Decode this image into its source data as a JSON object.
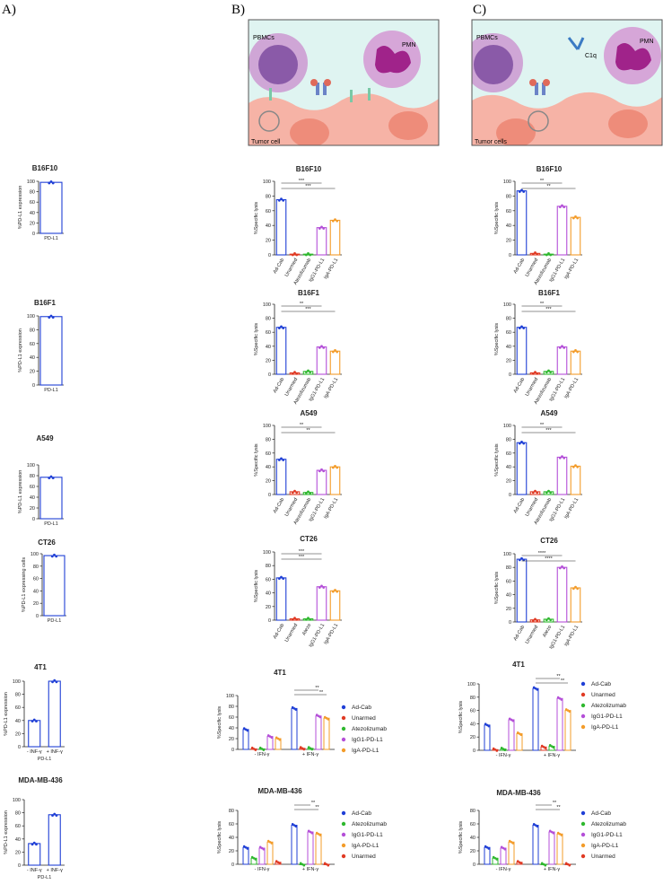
{
  "panels": {
    "a": "A)",
    "b": "B)",
    "c": "C)"
  },
  "illustrations": {
    "b": {
      "pbmc": "PBMCs",
      "pmn": "PMN",
      "tumor": "Tumor cell"
    },
    "c": {
      "pbmc": "PBMCs",
      "pmn": "PMN",
      "c1q": "C1q",
      "tumor": "Tumor cells"
    }
  },
  "colors": {
    "adcab": "#1f3fd6",
    "unarmed": "#e03a24",
    "atezo": "#2fb82f",
    "igg1": "#b44fd8",
    "iga": "#f39c2a",
    "axis": "#222222"
  },
  "chart_data": [
    {
      "id": "A1",
      "type": "bar",
      "title": "B16F10",
      "ylabel": "%PD-L1 expression",
      "ylim": [
        0,
        100
      ],
      "yticks": [
        0,
        20,
        40,
        60,
        80,
        100
      ],
      "categories": [
        "PD-L1"
      ],
      "values": [
        98
      ]
    },
    {
      "id": "A2",
      "type": "bar",
      "title": "B16F1",
      "ylabel": "%PD-L1 expression",
      "ylim": [
        0,
        100
      ],
      "yticks": [
        0,
        20,
        40,
        60,
        80,
        100
      ],
      "categories": [
        "PD-L1"
      ],
      "values": [
        99
      ]
    },
    {
      "id": "A3",
      "type": "bar",
      "title": "A549",
      "ylabel": "%PD-L1 expression",
      "ylim": [
        0,
        100
      ],
      "yticks": [
        0,
        20,
        40,
        60,
        80,
        100
      ],
      "categories": [
        "PD-L1"
      ],
      "values": [
        77
      ]
    },
    {
      "id": "A4",
      "type": "bar",
      "title": "CT26",
      "ylabel": "%PD-L1 expressing cells",
      "ylim": [
        0,
        100
      ],
      "yticks": [
        0,
        20,
        40,
        60,
        80,
        100
      ],
      "categories": [
        "PD-L1"
      ],
      "values": [
        97
      ]
    },
    {
      "id": "A5",
      "type": "bar",
      "title": "4T1",
      "ylabel": "%PD-L1 expression",
      "ylim": [
        0,
        100
      ],
      "yticks": [
        0,
        20,
        40,
        60,
        80,
        100
      ],
      "categories": [
        "- INF-γ",
        "+ INF-γ"
      ],
      "values": [
        40,
        100
      ],
      "xlabel": "PD-L1"
    },
    {
      "id": "A6",
      "type": "bar",
      "title": "MDA-MB-436",
      "ylabel": "%PD-L1 expression",
      "ylim": [
        0,
        100
      ],
      "yticks": [
        0,
        20,
        40,
        60,
        80,
        100
      ],
      "categories": [
        "- INF-γ",
        "+ INF-γ"
      ],
      "values": [
        33,
        77
      ],
      "xlabel": "PD-L1"
    },
    {
      "id": "B1",
      "type": "bar",
      "title": "B16F10",
      "ylabel": "%Specific lysis",
      "ylim": [
        0,
        100
      ],
      "yticks": [
        0,
        20,
        40,
        60,
        80,
        100
      ],
      "categories": [
        "Ad-Cab",
        "Unarmed",
        "Atezolizumab",
        "IgG1-PD-L1",
        "IgA-PD-L1"
      ],
      "values": [
        75,
        1,
        1,
        37,
        47
      ],
      "sig": [
        {
          "from": 0,
          "to": 3,
          "label": "***"
        },
        {
          "from": 0,
          "to": 4,
          "label": "***"
        }
      ]
    },
    {
      "id": "B2",
      "type": "bar",
      "title": "B16F1",
      "ylabel": "%Specific lysis",
      "ylim": [
        0,
        100
      ],
      "yticks": [
        0,
        20,
        40,
        60,
        80,
        100
      ],
      "categories": [
        "Ad-Cab",
        "Unarmed",
        "Atezolizumab",
        "IgG1-PD-L1",
        "IgA-PD-L1"
      ],
      "values": [
        67,
        2,
        4,
        39,
        33
      ],
      "sig": [
        {
          "from": 0,
          "to": 3,
          "label": "**"
        },
        {
          "from": 0,
          "to": 4,
          "label": "***"
        }
      ]
    },
    {
      "id": "B3",
      "type": "bar",
      "title": "A549",
      "ylabel": "%Specific lysis",
      "ylim": [
        0,
        100
      ],
      "yticks": [
        0,
        20,
        40,
        60,
        80,
        100
      ],
      "categories": [
        "Ad-Cab",
        "Unarmed",
        "Atezolizumab",
        "IgG1-PD-L1",
        "IgA-PD-L1"
      ],
      "values": [
        51,
        4,
        3,
        35,
        40
      ],
      "sig": [
        {
          "from": 0,
          "to": 3,
          "label": "**"
        },
        {
          "from": 0,
          "to": 4,
          "label": "**"
        }
      ]
    },
    {
      "id": "B4",
      "type": "bar",
      "title": "CT26",
      "ylabel": "%Specific lysis",
      "ylim": [
        0,
        100
      ],
      "yticks": [
        0,
        20,
        40,
        60,
        80,
        100
      ],
      "categories": [
        "Ad-Cab",
        "Unarmed",
        "Atezo",
        "IgG1-PD-L1",
        "IgA-PD-L1"
      ],
      "values": [
        62,
        2,
        2,
        49,
        43
      ],
      "sig": [
        {
          "from": 0,
          "to": 3,
          "label": "***"
        },
        {
          "from": 0,
          "to": 3,
          "label": "***"
        }
      ]
    },
    {
      "id": "C1",
      "type": "bar",
      "title": "B16F10",
      "ylabel": "%Specific lysis",
      "ylim": [
        0,
        100
      ],
      "yticks": [
        0,
        20,
        40,
        60,
        80,
        100
      ],
      "categories": [
        "Ad-Cab",
        "Unarmed",
        "Atezolizumab",
        "IgG1-PD-L1",
        "IgA-PD-L1"
      ],
      "values": [
        87,
        2,
        1,
        66,
        51
      ],
      "sig": [
        {
          "from": 0,
          "to": 3,
          "label": "**"
        },
        {
          "from": 0,
          "to": 4,
          "label": "**"
        }
      ]
    },
    {
      "id": "C2",
      "type": "bar",
      "title": "B16F1",
      "ylabel": "%Specific lysis",
      "ylim": [
        0,
        100
      ],
      "yticks": [
        0,
        20,
        40,
        60,
        80,
        100
      ],
      "categories": [
        "Ad-Cab",
        "Unarmed",
        "Atezolizumab",
        "IgG1-PD-L1",
        "IgA-PD-L1"
      ],
      "values": [
        67,
        2,
        4,
        39,
        33
      ],
      "sig": [
        {
          "from": 0,
          "to": 3,
          "label": "**"
        },
        {
          "from": 0,
          "to": 4,
          "label": "***"
        }
      ]
    },
    {
      "id": "C3",
      "type": "bar",
      "title": "A549",
      "ylabel": "%Specific lysis",
      "ylim": [
        0,
        100
      ],
      "yticks": [
        0,
        20,
        40,
        60,
        80,
        100
      ],
      "categories": [
        "Ad-Cab",
        "Unarmed",
        "Atezolizumab",
        "IgG1-PD-L1",
        "IgA-PD-L1"
      ],
      "values": [
        75,
        4,
        4,
        54,
        41
      ],
      "sig": [
        {
          "from": 0,
          "to": 3,
          "label": "**"
        },
        {
          "from": 0,
          "to": 4,
          "label": "***"
        }
      ]
    },
    {
      "id": "C4",
      "type": "bar",
      "title": "CT26",
      "ylabel": "%Specific lysis",
      "ylim": [
        0,
        100
      ],
      "yticks": [
        0,
        20,
        40,
        60,
        80,
        100
      ],
      "categories": [
        "Ad-Cab",
        "Unarmed",
        "Atezo",
        "IgG1-PD-L1",
        "IgA-PD-L1"
      ],
      "values": [
        92,
        3,
        4,
        80,
        50
      ],
      "sig": [
        {
          "from": 0,
          "to": 3,
          "label": "****"
        },
        {
          "from": 0,
          "to": 4,
          "label": "****"
        }
      ]
    },
    {
      "id": "B5",
      "type": "bar",
      "title": "4T1",
      "ylabel": "%Specific lysis",
      "ylim": [
        0,
        100
      ],
      "yticks": [
        0,
        20,
        40,
        60,
        80,
        100
      ],
      "categories": [
        "- IFN-γ",
        "+ IFN-γ"
      ],
      "series": [
        {
          "name": "Ad-Cab",
          "values": [
            37,
            76
          ]
        },
        {
          "name": "Unarmed",
          "values": [
            1,
            2
          ]
        },
        {
          "name": "Atezolizumab",
          "values": [
            1,
            2
          ]
        },
        {
          "name": "IgG1-PD-L1",
          "values": [
            24,
            62
          ]
        },
        {
          "name": "IgA-PD-L1",
          "values": [
            20,
            58
          ]
        }
      ],
      "sig": [
        {
          "from": 0,
          "to": 3,
          "label": "**"
        },
        {
          "from": 0,
          "to": 4,
          "label": "**"
        }
      ]
    },
    {
      "id": "B6",
      "type": "bar",
      "title": "MDA-MB-436",
      "ylabel": "%Specific lysis",
      "ylim": [
        0,
        80
      ],
      "yticks": [
        0,
        20,
        40,
        60,
        80
      ],
      "categories": [
        "- IFN-γ",
        "+ IFN-γ"
      ],
      "series": [
        {
          "name": "Ad-Cab",
          "values": [
            25,
            58
          ]
        },
        {
          "name": "Atezolizumab",
          "values": [
            9,
            0
          ]
        },
        {
          "name": "IgG1-PD-L1",
          "values": [
            24,
            48
          ]
        },
        {
          "name": "IgA-PD-L1",
          "values": [
            33,
            45
          ]
        },
        {
          "name": "Unarmed",
          "values": [
            3,
            0
          ]
        }
      ],
      "sig": [
        {
          "from": 0,
          "to": 2,
          "label": "**"
        },
        {
          "from": 0,
          "to": 3,
          "label": "**"
        }
      ]
    },
    {
      "id": "C5",
      "type": "bar",
      "title": "4T1",
      "ylabel": "%Specific lysis",
      "ylim": [
        0,
        100
      ],
      "yticks": [
        0,
        20,
        40,
        60,
        80,
        100
      ],
      "categories": [
        "- IFN-γ",
        "+ IFN-γ"
      ],
      "series": [
        {
          "name": "Ad-Cab",
          "values": [
            38,
            93
          ]
        },
        {
          "name": "Unarmed",
          "values": [
            1,
            5
          ]
        },
        {
          "name": "Atezolizumab",
          "values": [
            2,
            6
          ]
        },
        {
          "name": "IgG1-PD-L1",
          "values": [
            46,
            78
          ]
        },
        {
          "name": "IgA-PD-L1",
          "values": [
            25,
            60
          ]
        }
      ],
      "sig": [
        {
          "from": 0,
          "to": 3,
          "label": "**"
        },
        {
          "from": 0,
          "to": 4,
          "label": "**"
        }
      ]
    },
    {
      "id": "C6",
      "type": "bar",
      "title": "MDA-MB-436",
      "ylabel": "%Specific lysis",
      "ylim": [
        0,
        80
      ],
      "yticks": [
        0,
        20,
        40,
        60,
        80
      ],
      "categories": [
        "- IFN-γ",
        "+ IFN-γ"
      ],
      "series": [
        {
          "name": "Ad-Cab",
          "values": [
            25,
            58
          ]
        },
        {
          "name": "Atezolizumab",
          "values": [
            9,
            0
          ]
        },
        {
          "name": "IgG1-PD-L1",
          "values": [
            24,
            48
          ]
        },
        {
          "name": "IgA-PD-L1",
          "values": [
            33,
            45
          ]
        },
        {
          "name": "Unarmed",
          "values": [
            3,
            0
          ]
        }
      ],
      "sig": [
        {
          "from": 0,
          "to": 2,
          "label": "**"
        },
        {
          "from": 0,
          "to": 3,
          "label": "**"
        }
      ]
    }
  ]
}
